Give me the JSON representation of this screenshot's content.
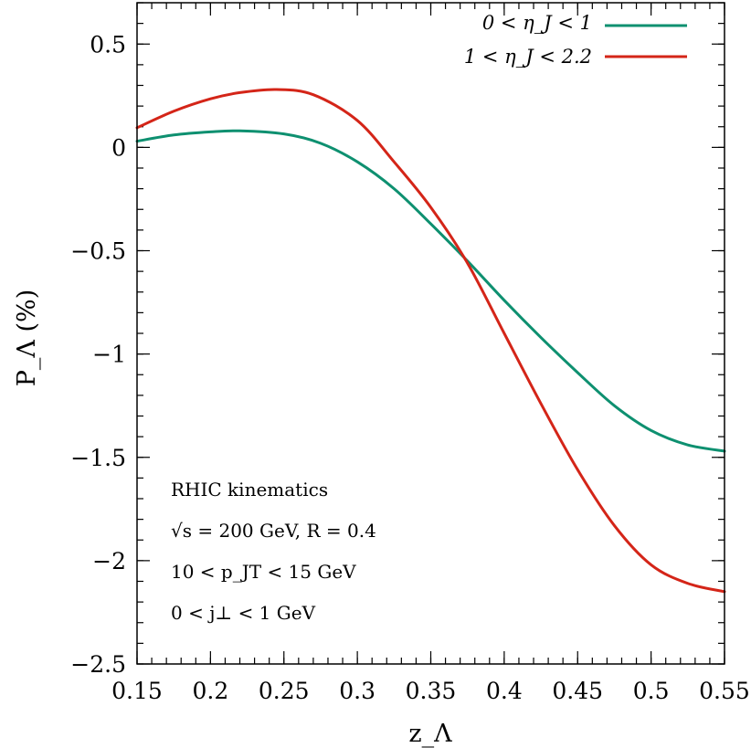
{
  "chart_data": {
    "type": "line",
    "xlabel": "z_Λ",
    "ylabel": "P_Λ (%)",
    "xlim": [
      0.15,
      0.55
    ],
    "ylim": [
      -2.5,
      0.7
    ],
    "x_ticks": [
      0.15,
      0.2,
      0.25,
      0.3,
      0.35,
      0.4,
      0.45,
      0.5,
      0.55
    ],
    "x_tick_labels": [
      "0.15",
      "0.2",
      "0.25",
      "0.3",
      "0.35",
      "0.4",
      "0.45",
      "0.5",
      "0.55"
    ],
    "x_minor_step": 0.01,
    "y_ticks": [
      0.5,
      0,
      -0.5,
      -1,
      -1.5,
      -2,
      -2.5
    ],
    "y_tick_labels": [
      "0.5",
      "0",
      "−0.5",
      "−1",
      "−1.5",
      "−2",
      "−2.5"
    ],
    "y_minor_step": 0.1,
    "grid": false,
    "legend_position": "top-right",
    "series": [
      {
        "name": "0 < η_J < 1",
        "color": "#0e9070",
        "x": [
          0.15,
          0.175,
          0.2,
          0.22,
          0.25,
          0.275,
          0.3,
          0.325,
          0.35,
          0.375,
          0.4,
          0.425,
          0.45,
          0.475,
          0.5,
          0.525,
          0.55
        ],
        "y": [
          0.03,
          0.06,
          0.075,
          0.08,
          0.065,
          0.02,
          -0.07,
          -0.2,
          -0.37,
          -0.55,
          -0.74,
          -0.92,
          -1.09,
          -1.25,
          -1.37,
          -1.44,
          -1.47
        ]
      },
      {
        "name": "1 < η_J < 2.2",
        "color": "#d42518",
        "x": [
          0.15,
          0.175,
          0.2,
          0.22,
          0.245,
          0.27,
          0.3,
          0.325,
          0.35,
          0.375,
          0.4,
          0.425,
          0.45,
          0.475,
          0.5,
          0.525,
          0.55
        ],
        "y": [
          0.095,
          0.175,
          0.235,
          0.265,
          0.28,
          0.255,
          0.13,
          -0.07,
          -0.29,
          -0.56,
          -0.9,
          -1.24,
          -1.56,
          -1.83,
          -2.02,
          -2.11,
          -2.15
        ]
      }
    ],
    "annotations": [
      "RHIC kinematics",
      "√s = 200 GeV,  R = 0.4",
      "10 < p_JT < 15 GeV",
      "0 < j⊥ < 1 GeV"
    ]
  }
}
